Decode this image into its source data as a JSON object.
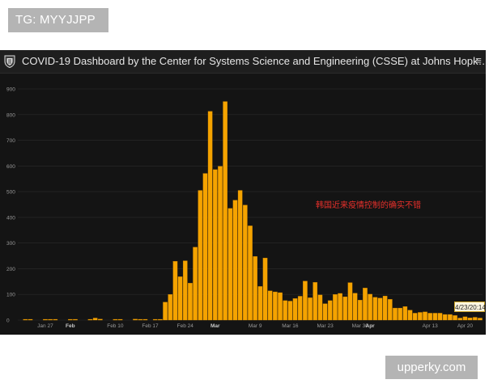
{
  "badge": {
    "text": "TG: MYYJJPP"
  },
  "watermark": {
    "text": "upperky.com"
  },
  "window": {
    "title": "COVID-19 Dashboard by the Center for Systems Science and Engineering (CSSE) at Johns Hopk…",
    "logo_icon": "university-shield-icon",
    "menu_icon": "menu-icon"
  },
  "annotation": {
    "text": "韩国近来疫情控制的确实不错"
  },
  "date_tag": {
    "text": "4/23/20:14"
  },
  "colors": {
    "bar": "#f5a300",
    "bar_edge": "#c67f00",
    "background": "#141414",
    "grid": "#2a2a2a",
    "tick_text": "#9a9a9a"
  },
  "chart_data": {
    "type": "bar",
    "title": "",
    "xlabel": "",
    "ylabel": "",
    "ylim": [
      0,
      900
    ],
    "yticks": [
      0,
      100,
      200,
      300,
      400,
      500,
      600,
      700,
      800,
      900
    ],
    "grid": true,
    "categories": [
      "Jan 22",
      "Jan 23",
      "Jan 24",
      "Jan 25",
      "Jan 26",
      "Jan 27",
      "Jan 28",
      "Jan 29",
      "Jan 30",
      "Jan 31",
      "Feb 1",
      "Feb 2",
      "Feb 3",
      "Feb 4",
      "Feb 5",
      "Feb 6",
      "Feb 7",
      "Feb 8",
      "Feb 9",
      "Feb 10",
      "Feb 11",
      "Feb 12",
      "Feb 13",
      "Feb 14",
      "Feb 15",
      "Feb 16",
      "Feb 17",
      "Feb 18",
      "Feb 19",
      "Feb 20",
      "Feb 21",
      "Feb 22",
      "Feb 23",
      "Feb 24",
      "Feb 25",
      "Feb 26",
      "Feb 27",
      "Feb 28",
      "Feb 29",
      "Mar 1",
      "Mar 2",
      "Mar 3",
      "Mar 4",
      "Mar 5",
      "Mar 6",
      "Mar 7",
      "Mar 8",
      "Mar 9",
      "Mar 10",
      "Mar 11",
      "Mar 12",
      "Mar 13",
      "Mar 14",
      "Mar 15",
      "Mar 16",
      "Mar 17",
      "Mar 18",
      "Mar 19",
      "Mar 20",
      "Mar 21",
      "Mar 22",
      "Mar 23",
      "Mar 24",
      "Mar 25",
      "Mar 26",
      "Mar 27",
      "Mar 28",
      "Mar 29",
      "Mar 30",
      "Mar 31",
      "Apr 1",
      "Apr 2",
      "Apr 3",
      "Apr 4",
      "Apr 5",
      "Apr 6",
      "Apr 7",
      "Apr 8",
      "Apr 9",
      "Apr 10",
      "Apr 11",
      "Apr 12",
      "Apr 13",
      "Apr 14",
      "Apr 15",
      "Apr 16",
      "Apr 17",
      "Apr 18",
      "Apr 19",
      "Apr 20",
      "Apr 21",
      "Apr 22",
      "Apr 23"
    ],
    "x_tick_labels": [
      {
        "label": "Jan 27",
        "category": "Jan 27",
        "bold": false
      },
      {
        "label": "Feb",
        "category": "Feb 1",
        "bold": true
      },
      {
        "label": "Feb 10",
        "category": "Feb 10",
        "bold": false
      },
      {
        "label": "Feb 17",
        "category": "Feb 17",
        "bold": false
      },
      {
        "label": "Feb 24",
        "category": "Feb 24",
        "bold": false
      },
      {
        "label": "Mar",
        "category": "Mar 1",
        "bold": true
      },
      {
        "label": "Mar 9",
        "category": "Mar 9",
        "bold": false
      },
      {
        "label": "Mar 16",
        "category": "Mar 16",
        "bold": false
      },
      {
        "label": "Mar 23",
        "category": "Mar 23",
        "bold": false
      },
      {
        "label": "Mar 30",
        "category": "Mar 30",
        "bold": false
      },
      {
        "label": "Apr",
        "category": "Apr 1",
        "bold": true
      },
      {
        "label": "Apr 13",
        "category": "Apr 13",
        "bold": false
      },
      {
        "label": "Apr 20",
        "category": "Apr 20",
        "bold": false
      }
    ],
    "series": [
      {
        "values": [
          0,
          1,
          2,
          0,
          0,
          3,
          1,
          3,
          0,
          0,
          1,
          3,
          0,
          0,
          3,
          8,
          4,
          0,
          0,
          3,
          1,
          0,
          0,
          4,
          2,
          1,
          0,
          1,
          2,
          70,
          100,
          229,
          169,
          231,
          144,
          284,
          505,
          571,
          813,
          586,
          599,
          851,
          435,
          467,
          505,
          448,
          367,
          248,
          131,
          242,
          114,
          110,
          107,
          76,
          74,
          84,
          93,
          152,
          87,
          147,
          98,
          64,
          76,
          100,
          104,
          91,
          146,
          105,
          78,
          125,
          101,
          89,
          86,
          94,
          81,
          47,
          47,
          53,
          39,
          27,
          30,
          32,
          27,
          27,
          27,
          22,
          22,
          18,
          8,
          13,
          9,
          11,
          8
        ]
      }
    ]
  }
}
